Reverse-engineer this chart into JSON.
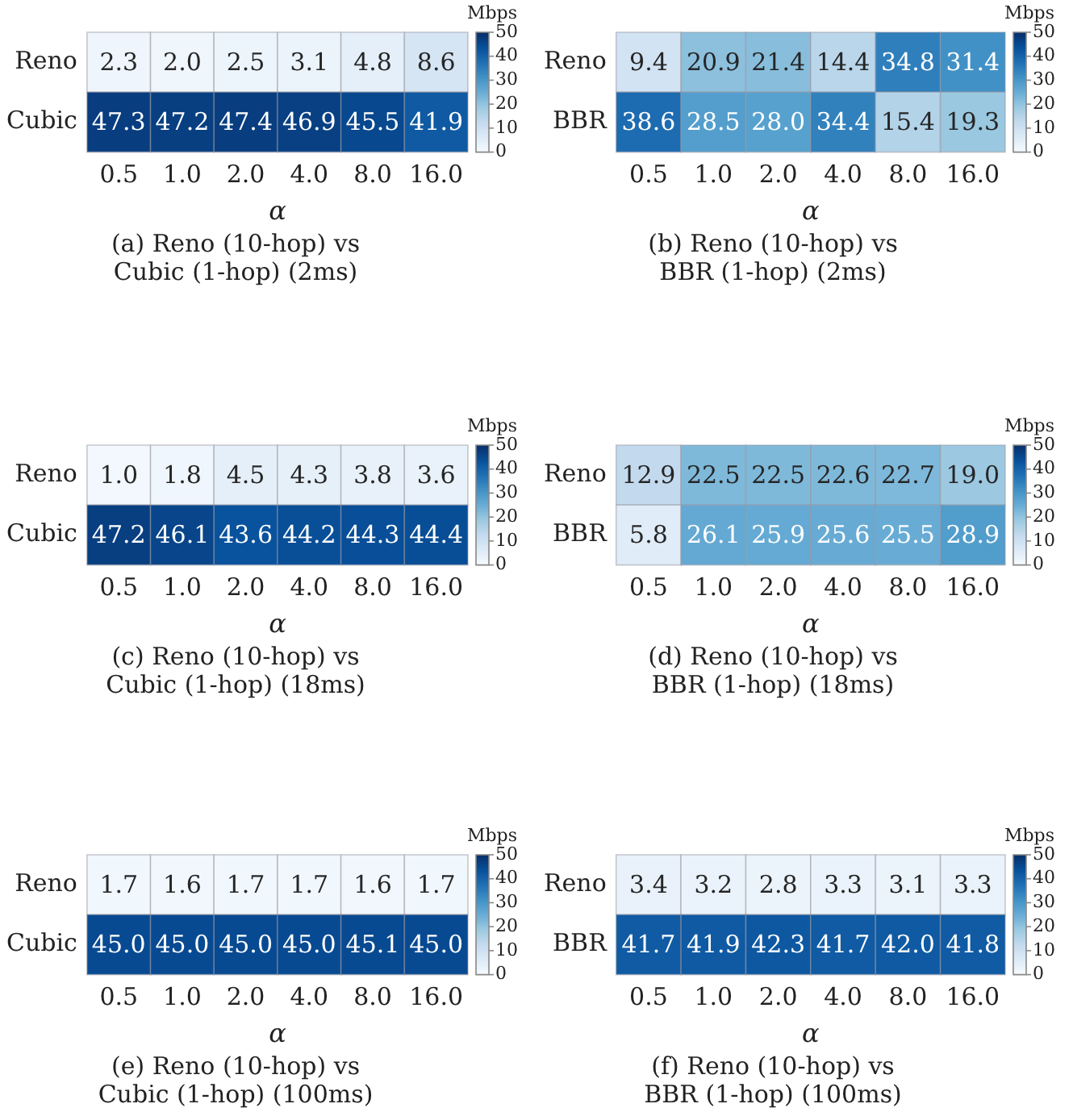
{
  "chart_data": [
    {
      "type": "heatmap",
      "title": "(a) Reno (10-hop) vs Cubic (1-hop) (2ms)",
      "xlabel": "α",
      "clabel": "Mbps",
      "categories": [
        "0.5",
        "1.0",
        "2.0",
        "4.0",
        "8.0",
        "16.0"
      ],
      "y_categories": [
        "Reno",
        "Cubic"
      ],
      "cells": [
        [
          2.3,
          2.0,
          2.5,
          3.1,
          4.8,
          8.6
        ],
        [
          47.3,
          47.2,
          47.4,
          46.9,
          45.5,
          41.9
        ]
      ],
      "cell_labels": [
        [
          "2.3",
          "2.0",
          "2.5",
          "3.1",
          "4.8",
          "8.6"
        ],
        [
          "47.3",
          "47.2",
          "47.4",
          "46.9",
          "45.5",
          "41.9"
        ]
      ],
      "clim": [
        0,
        50
      ],
      "cticks": [
        0,
        10,
        20,
        30,
        40,
        50
      ]
    },
    {
      "type": "heatmap",
      "title": "(b) Reno (10-hop) vs BBR (1-hop) (2ms)",
      "xlabel": "α",
      "clabel": "Mbps",
      "categories": [
        "0.5",
        "1.0",
        "2.0",
        "4.0",
        "8.0",
        "16.0"
      ],
      "y_categories": [
        "Reno",
        "BBR"
      ],
      "cells": [
        [
          9.4,
          20.9,
          21.4,
          14.4,
          34.8,
          31.4
        ],
        [
          38.6,
          28.5,
          28.0,
          34.4,
          15.4,
          19.3
        ]
      ],
      "cell_labels": [
        [
          "9.4",
          "20.9",
          "21.4",
          "14.4",
          "34.8",
          "31.4"
        ],
        [
          "38.6",
          "28.5",
          "28.0",
          "34.4",
          "15.4",
          "19.3"
        ]
      ],
      "clim": [
        0,
        50
      ],
      "cticks": [
        0,
        10,
        20,
        30,
        40,
        50
      ]
    },
    {
      "type": "heatmap",
      "title": "(c) Reno (10-hop) vs Cubic (1-hop) (18ms)",
      "xlabel": "α",
      "clabel": "Mbps",
      "categories": [
        "0.5",
        "1.0",
        "2.0",
        "4.0",
        "8.0",
        "16.0"
      ],
      "y_categories": [
        "Reno",
        "Cubic"
      ],
      "cells": [
        [
          1.0,
          1.8,
          4.5,
          4.3,
          3.8,
          3.6
        ],
        [
          47.2,
          46.1,
          43.6,
          44.2,
          44.3,
          44.4
        ]
      ],
      "cell_labels": [
        [
          "1.0",
          "1.8",
          "4.5",
          "4.3",
          "3.8",
          "3.6"
        ],
        [
          "47.2",
          "46.1",
          "43.6",
          "44.2",
          "44.3",
          "44.4"
        ]
      ],
      "clim": [
        0,
        50
      ],
      "cticks": [
        0,
        10,
        20,
        30,
        40,
        50
      ]
    },
    {
      "type": "heatmap",
      "title": "(d) Reno (10-hop) vs BBR (1-hop) (18ms)",
      "xlabel": "α",
      "clabel": "Mbps",
      "categories": [
        "0.5",
        "1.0",
        "2.0",
        "4.0",
        "8.0",
        "16.0"
      ],
      "y_categories": [
        "Reno",
        "BBR"
      ],
      "cells": [
        [
          12.9,
          22.5,
          22.5,
          22.6,
          22.7,
          19.0
        ],
        [
          5.8,
          26.1,
          25.9,
          25.6,
          25.5,
          28.9
        ]
      ],
      "cell_labels": [
        [
          "12.9",
          "22.5",
          "22.5",
          "22.6",
          "22.7",
          "19.0"
        ],
        [
          "5.8",
          "26.1",
          "25.9",
          "25.6",
          "25.5",
          "28.9"
        ]
      ],
      "clim": [
        0,
        50
      ],
      "cticks": [
        0,
        10,
        20,
        30,
        40,
        50
      ]
    },
    {
      "type": "heatmap",
      "title": "(e) Reno (10-hop) vs Cubic (1-hop) (100ms)",
      "xlabel": "α",
      "clabel": "Mbps",
      "categories": [
        "0.5",
        "1.0",
        "2.0",
        "4.0",
        "8.0",
        "16.0"
      ],
      "y_categories": [
        "Reno",
        "Cubic"
      ],
      "cells": [
        [
          1.7,
          1.6,
          1.7,
          1.7,
          1.6,
          1.7
        ],
        [
          45.0,
          45.0,
          45.0,
          45.0,
          45.1,
          45.0
        ]
      ],
      "cell_labels": [
        [
          "1.7",
          "1.6",
          "1.7",
          "1.7",
          "1.6",
          "1.7"
        ],
        [
          "45.0",
          "45.0",
          "45.0",
          "45.0",
          "45.1",
          "45.0"
        ]
      ],
      "clim": [
        0,
        50
      ],
      "cticks": [
        0,
        10,
        20,
        30,
        40,
        50
      ]
    },
    {
      "type": "heatmap",
      "title": "(f) Reno (10-hop) vs BBR (1-hop) (100ms)",
      "xlabel": "α",
      "clabel": "Mbps",
      "categories": [
        "0.5",
        "1.0",
        "2.0",
        "4.0",
        "8.0",
        "16.0"
      ],
      "y_categories": [
        "Reno",
        "BBR"
      ],
      "cells": [
        [
          3.4,
          3.2,
          2.8,
          3.3,
          3.1,
          3.3
        ],
        [
          41.7,
          41.9,
          42.3,
          41.7,
          42.0,
          41.8
        ]
      ],
      "cell_labels": [
        [
          "3.4",
          "3.2",
          "2.8",
          "3.3",
          "3.1",
          "3.3"
        ],
        [
          "41.7",
          "41.9",
          "42.3",
          "41.7",
          "42.0",
          "41.8"
        ]
      ],
      "clim": [
        0,
        50
      ],
      "cticks": [
        0,
        10,
        20,
        30,
        40,
        50
      ]
    }
  ]
}
